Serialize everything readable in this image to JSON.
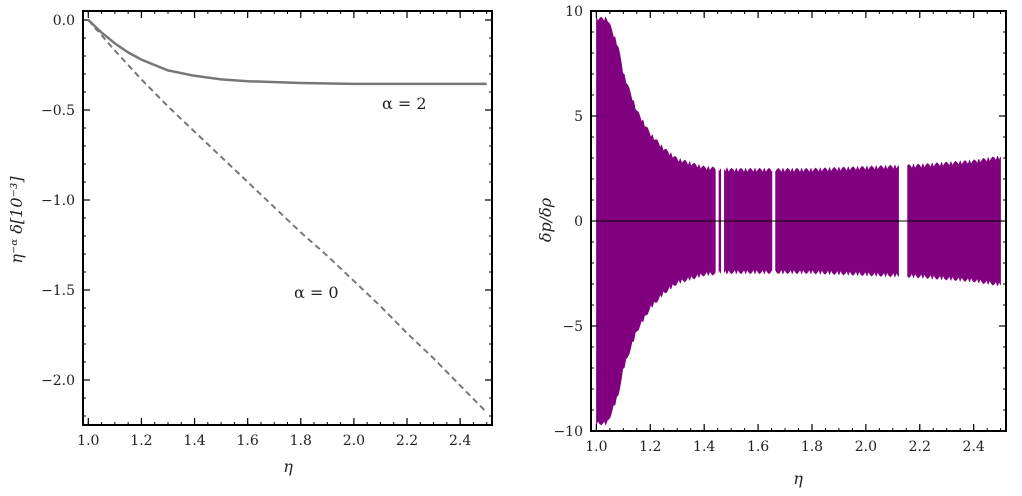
{
  "chart_data": [
    {
      "type": "line",
      "xlabel": "η",
      "ylabel": "η⁻ᵅ δ[10⁻³]",
      "xlim": [
        0.98,
        2.52
      ],
      "ylim": [
        -2.25,
        0.05
      ],
      "xticks": [
        "1.0",
        "1.2",
        "1.4",
        "1.6",
        "1.8",
        "2.0",
        "2.2",
        "2.4"
      ],
      "yticks": [
        "0.0",
        "−0.5",
        "−1.0",
        "−1.5",
        "−2.0"
      ],
      "series": [
        {
          "style": "solid",
          "color": "#777777",
          "x": [
            1.0,
            1.05,
            1.1,
            1.15,
            1.2,
            1.3,
            1.4,
            1.5,
            1.6,
            1.8,
            2.0,
            2.2,
            2.4,
            2.5
          ],
          "y": [
            0.0,
            -0.07,
            -0.13,
            -0.18,
            -0.22,
            -0.28,
            -0.31,
            -0.33,
            -0.34,
            -0.35,
            -0.355,
            -0.355,
            -0.355,
            -0.355
          ]
        },
        {
          "style": "dashed",
          "color": "#777777",
          "x": [
            1.0,
            1.1,
            1.2,
            1.3,
            1.4,
            1.5,
            1.6,
            1.7,
            1.8,
            1.9,
            2.0,
            2.1,
            2.2,
            2.3,
            2.4,
            2.5
          ],
          "y": [
            0.0,
            -0.17,
            -0.33,
            -0.48,
            -0.62,
            -0.76,
            -0.9,
            -1.04,
            -1.18,
            -1.31,
            -1.45,
            -1.59,
            -1.74,
            -1.88,
            -2.03,
            -2.18
          ]
        }
      ],
      "annotations": [
        {
          "text": "α = 2",
          "x": 2.15,
          "y": -0.53
        },
        {
          "text": "α = 0",
          "x": 1.88,
          "y": -1.55
        }
      ]
    },
    {
      "type": "line",
      "xlabel": "η",
      "ylabel": "δp/δρ",
      "xlim": [
        0.98,
        2.52
      ],
      "ylim": [
        -10,
        10
      ],
      "xticks": [
        "1.0",
        "1.2",
        "1.4",
        "1.6",
        "1.8",
        "2.0",
        "2.2",
        "2.4"
      ],
      "yticks": [
        "10",
        "5",
        "0",
        "−5",
        "−10"
      ],
      "series": [
        {
          "style": "oscillating-band",
          "color": "#800080",
          "x": [
            1.0,
            1.04,
            1.08,
            1.1,
            1.15,
            1.2,
            1.25,
            1.3,
            1.4,
            1.5,
            1.6,
            1.8,
            2.0,
            2.2,
            2.4,
            2.5
          ],
          "envelope": [
            9.6,
            9.6,
            8.3,
            7.0,
            5.2,
            4.1,
            3.4,
            2.9,
            2.5,
            2.4,
            2.4,
            2.4,
            2.5,
            2.6,
            2.8,
            3.0
          ]
        }
      ],
      "reference_line": {
        "y": 0,
        "color": "#000000"
      }
    }
  ]
}
